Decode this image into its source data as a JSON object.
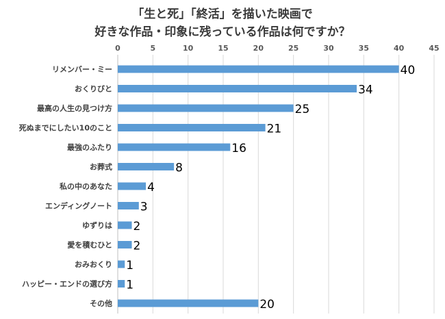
{
  "chart_data": {
    "type": "bar",
    "orientation": "horizontal",
    "title_lines": [
      "「生と死」「終活」を描いた映画で",
      "好きな作品・印象に残っている作品は何ですか？"
    ],
    "categories": [
      "リメンバー・ミー",
      "おくりびと",
      "最高の人生の見つけ方",
      "死ぬまでにしたい10のこと",
      "最強のふたり",
      "お葬式",
      "私の中のあなた",
      "エンディングノート",
      "ゆずりは",
      "愛を積むひと",
      "おみおくり",
      "ハッピー・エンドの選び方",
      "その他"
    ],
    "values": [
      40,
      34,
      25,
      21,
      16,
      8,
      4,
      3,
      2,
      2,
      1,
      1,
      20
    ],
    "xlim": [
      0,
      45
    ],
    "xticks": [
      0,
      5,
      10,
      15,
      20,
      25,
      30,
      35,
      40,
      45
    ],
    "x_axis_position": "top",
    "grid": true,
    "data_labels": true,
    "colors": {
      "bar": "#5b9bd5",
      "grid": "#d9d9d9",
      "title": "#3a3a3a",
      "label": "#000000"
    }
  }
}
